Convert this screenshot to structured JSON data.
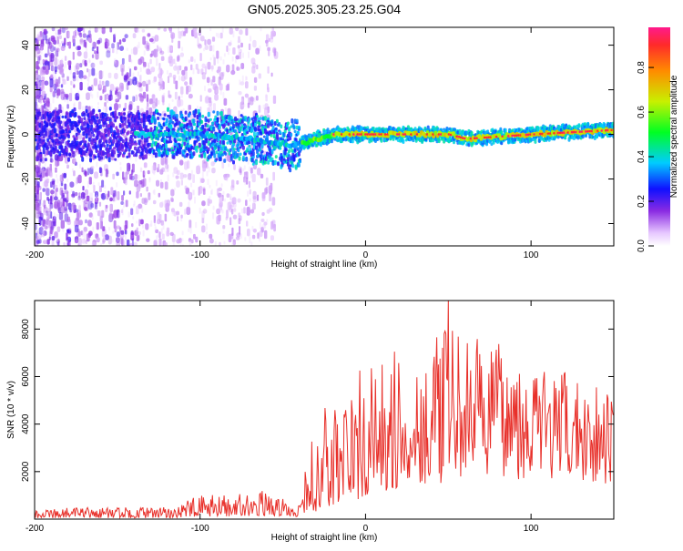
{
  "title": "GN05.2025.305.23.25.G04",
  "chart_data": [
    {
      "type": "heatmap",
      "name": "spectrogram",
      "xlabel": "Height of straight line (km)",
      "ylabel": "Frequency (Hz)",
      "xlim": [
        -200,
        150
      ],
      "ylim": [
        -50,
        48
      ],
      "xticks": [
        -200,
        -100,
        0,
        100
      ],
      "yticks": [
        40,
        20,
        0,
        -20,
        -40
      ],
      "colorbar": {
        "label": "Normalized spectral amplitude",
        "range": [
          0,
          0.98
        ],
        "ticks": [
          "0.0",
          "0.2",
          "0.4",
          "0.6",
          "0.8"
        ]
      },
      "ridge": [
        {
          "x": -200,
          "y": 0
        },
        {
          "x": -100,
          "y": 0
        },
        {
          "x": -60,
          "y": -3
        },
        {
          "x": -45,
          "y": -5
        },
        {
          "x": -35,
          "y": -3
        },
        {
          "x": -20,
          "y": 0
        },
        {
          "x": 0,
          "y": 0
        },
        {
          "x": 50,
          "y": 0
        },
        {
          "x": 60,
          "y": -2
        },
        {
          "x": 100,
          "y": 0
        },
        {
          "x": 150,
          "y": 2
        }
      ]
    },
    {
      "type": "line",
      "name": "snr",
      "xlabel": "Height of straight line (km)",
      "ylabel": "SNR (10 * v/v)",
      "xlim": [
        -200,
        150
      ],
      "ylim": [
        0,
        9200
      ],
      "xticks": [
        -200,
        -100,
        0,
        100
      ],
      "yticks": [
        2000,
        4000,
        6000,
        8000
      ],
      "color": "#e8302a",
      "envelope": [
        {
          "x": -200,
          "lo": 50,
          "hi": 500
        },
        {
          "x": -120,
          "lo": 50,
          "hi": 500
        },
        {
          "x": -100,
          "lo": 100,
          "hi": 1000
        },
        {
          "x": -60,
          "lo": 150,
          "hi": 1200
        },
        {
          "x": -40,
          "lo": 100,
          "hi": 600
        },
        {
          "x": -30,
          "lo": 300,
          "hi": 4600
        },
        {
          "x": -15,
          "lo": 600,
          "hi": 5600
        },
        {
          "x": 0,
          "lo": 900,
          "hi": 6600
        },
        {
          "x": 30,
          "lo": 1500,
          "hi": 7400
        },
        {
          "x": 50,
          "lo": 1500,
          "hi": 8000
        },
        {
          "x": 80,
          "lo": 1800,
          "hi": 7400
        },
        {
          "x": 110,
          "lo": 1500,
          "hi": 6400
        },
        {
          "x": 150,
          "lo": 1500,
          "hi": 5600
        }
      ],
      "peak": {
        "x": 50,
        "y": 9200
      }
    }
  ]
}
